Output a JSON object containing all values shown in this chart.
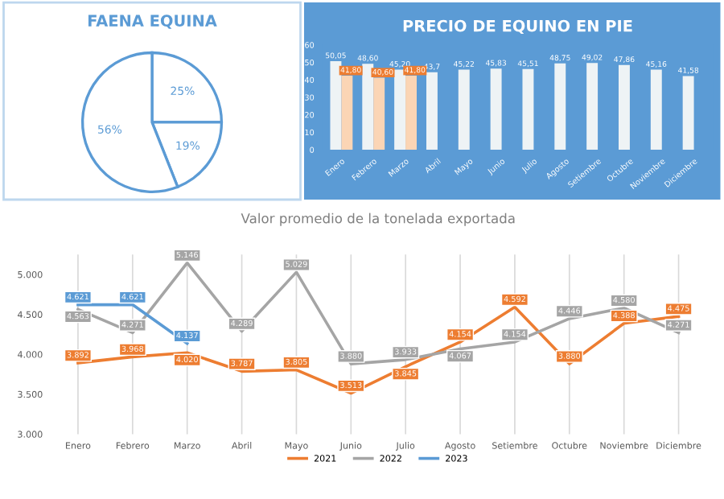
{
  "chart_data": [
    {
      "type": "pie",
      "title": "FAENA EQUINA",
      "categories": [
        null,
        null,
        null
      ],
      "values": [
        25,
        19,
        56
      ],
      "colors": [
        "#ffffff",
        "#ffffff",
        "#ffffff"
      ],
      "value_labels": [
        "25%",
        "19%",
        "56%"
      ]
    },
    {
      "type": "bar",
      "title": "PRECIO DE EQUINO EN PIE",
      "categories": [
        "Enero",
        "Febrero",
        "Marzo",
        "Abril",
        "Mayo",
        "Junio",
        "Julio",
        "Agosto",
        "Setiembre",
        "Octubre",
        "Noviembre",
        "Diciembre"
      ],
      "series": [
        {
          "color": "#eef3f5",
          "values": [
            50.05,
            48.6,
            45.2,
            43.7,
            45.22,
            45.83,
            45.51,
            48.75,
            49.02,
            47.86,
            45.16,
            41.58
          ],
          "value_labels": [
            "50,05",
            "48,60",
            "45,20",
            "43,7",
            "45,22",
            "45,83",
            "45,51",
            "48,75",
            "49,02",
            "47,86",
            "45,16",
            "41,58"
          ]
        },
        {
          "color": "#fbd5b5",
          "values": [
            41.8,
            40.6,
            41.8,
            null,
            null,
            null,
            null,
            null,
            null,
            null,
            null,
            null
          ],
          "value_labels": [
            "41,80",
            "40,60",
            "41,80",
            null,
            null,
            null,
            null,
            null,
            null,
            null,
            null,
            null
          ]
        }
      ],
      "ylim": [
        0,
        60
      ],
      "yticks": [
        0,
        10,
        20,
        30,
        40,
        50,
        60
      ]
    },
    {
      "type": "line",
      "title": "Valor promedio de la tonelada exportada",
      "categories": [
        "Enero",
        "Febrero",
        "Marzo",
        "Abril",
        "Mayo",
        "Junio",
        "Julio",
        "Agosto",
        "Setiembre",
        "Octubre",
        "Noviembre",
        "Diciembre"
      ],
      "series": [
        {
          "name": "2021",
          "color": "#ed7d31",
          "values": [
            3892,
            3968,
            4020,
            3787,
            3805,
            3513,
            3845,
            4154,
            4592,
            3880,
            4388,
            4475
          ],
          "value_labels": [
            "3.892",
            "3.968",
            "4.020",
            "3.787",
            "3.805",
            "3.513",
            "3.845",
            "4.154",
            "4.592",
            "3.880",
            "4.388",
            "4.475"
          ]
        },
        {
          "name": "2022",
          "color": "#a5a5a5",
          "values": [
            4563,
            4271,
            5146,
            4289,
            5029,
            3880,
            3933,
            4067,
            4154,
            4446,
            4580,
            4271
          ],
          "value_labels": [
            "4.563",
            "4.271",
            "5.146",
            "4.289",
            "5.029",
            "3.880",
            "3.933",
            "4.067",
            "4.154",
            "4.446",
            "4.580",
            "4.271"
          ]
        },
        {
          "name": "2023",
          "color": "#5b9bd5",
          "values": [
            4621,
            4621,
            4137,
            null,
            null,
            null,
            null,
            null,
            null,
            null,
            null,
            null
          ],
          "value_labels": [
            "4.621",
            "4.621",
            "4.137",
            null,
            null,
            null,
            null,
            null,
            null,
            null,
            null,
            null
          ]
        }
      ],
      "ylim": [
        3000,
        5250
      ],
      "yticks": [
        {
          "value": 3000,
          "label": "3.000"
        },
        {
          "value": 3500,
          "label": "3.500"
        },
        {
          "value": 4000,
          "label": "4.000"
        },
        {
          "value": 4500,
          "label": "4.500"
        },
        {
          "value": 5000,
          "label": "5.000"
        }
      ],
      "grid": "x",
      "legend": "bottom",
      "marker": "none"
    }
  ]
}
